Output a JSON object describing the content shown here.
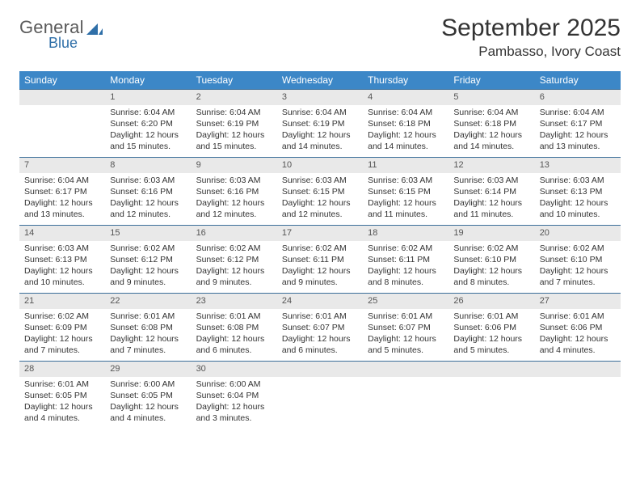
{
  "logo": {
    "text_general": "General",
    "text_blue": "Blue"
  },
  "colors": {
    "header_bg": "#3c87c7",
    "header_text": "#ffffff",
    "daynum_bg": "#e9e9e9",
    "daynum_border": "#3c6f9a",
    "logo_gray": "#5a5a5a",
    "logo_blue": "#2f6fa8"
  },
  "title": "September 2025",
  "location": "Pambasso, Ivory Coast",
  "weekdays": [
    "Sunday",
    "Monday",
    "Tuesday",
    "Wednesday",
    "Thursday",
    "Friday",
    "Saturday"
  ],
  "weeks": [
    [
      {
        "n": "",
        "sr": "",
        "ss": "",
        "dl": ""
      },
      {
        "n": "1",
        "sr": "Sunrise: 6:04 AM",
        "ss": "Sunset: 6:20 PM",
        "dl": "Daylight: 12 hours and 15 minutes."
      },
      {
        "n": "2",
        "sr": "Sunrise: 6:04 AM",
        "ss": "Sunset: 6:19 PM",
        "dl": "Daylight: 12 hours and 15 minutes."
      },
      {
        "n": "3",
        "sr": "Sunrise: 6:04 AM",
        "ss": "Sunset: 6:19 PM",
        "dl": "Daylight: 12 hours and 14 minutes."
      },
      {
        "n": "4",
        "sr": "Sunrise: 6:04 AM",
        "ss": "Sunset: 6:18 PM",
        "dl": "Daylight: 12 hours and 14 minutes."
      },
      {
        "n": "5",
        "sr": "Sunrise: 6:04 AM",
        "ss": "Sunset: 6:18 PM",
        "dl": "Daylight: 12 hours and 14 minutes."
      },
      {
        "n": "6",
        "sr": "Sunrise: 6:04 AM",
        "ss": "Sunset: 6:17 PM",
        "dl": "Daylight: 12 hours and 13 minutes."
      }
    ],
    [
      {
        "n": "7",
        "sr": "Sunrise: 6:04 AM",
        "ss": "Sunset: 6:17 PM",
        "dl": "Daylight: 12 hours and 13 minutes."
      },
      {
        "n": "8",
        "sr": "Sunrise: 6:03 AM",
        "ss": "Sunset: 6:16 PM",
        "dl": "Daylight: 12 hours and 12 minutes."
      },
      {
        "n": "9",
        "sr": "Sunrise: 6:03 AM",
        "ss": "Sunset: 6:16 PM",
        "dl": "Daylight: 12 hours and 12 minutes."
      },
      {
        "n": "10",
        "sr": "Sunrise: 6:03 AM",
        "ss": "Sunset: 6:15 PM",
        "dl": "Daylight: 12 hours and 12 minutes."
      },
      {
        "n": "11",
        "sr": "Sunrise: 6:03 AM",
        "ss": "Sunset: 6:15 PM",
        "dl": "Daylight: 12 hours and 11 minutes."
      },
      {
        "n": "12",
        "sr": "Sunrise: 6:03 AM",
        "ss": "Sunset: 6:14 PM",
        "dl": "Daylight: 12 hours and 11 minutes."
      },
      {
        "n": "13",
        "sr": "Sunrise: 6:03 AM",
        "ss": "Sunset: 6:13 PM",
        "dl": "Daylight: 12 hours and 10 minutes."
      }
    ],
    [
      {
        "n": "14",
        "sr": "Sunrise: 6:03 AM",
        "ss": "Sunset: 6:13 PM",
        "dl": "Daylight: 12 hours and 10 minutes."
      },
      {
        "n": "15",
        "sr": "Sunrise: 6:02 AM",
        "ss": "Sunset: 6:12 PM",
        "dl": "Daylight: 12 hours and 9 minutes."
      },
      {
        "n": "16",
        "sr": "Sunrise: 6:02 AM",
        "ss": "Sunset: 6:12 PM",
        "dl": "Daylight: 12 hours and 9 minutes."
      },
      {
        "n": "17",
        "sr": "Sunrise: 6:02 AM",
        "ss": "Sunset: 6:11 PM",
        "dl": "Daylight: 12 hours and 9 minutes."
      },
      {
        "n": "18",
        "sr": "Sunrise: 6:02 AM",
        "ss": "Sunset: 6:11 PM",
        "dl": "Daylight: 12 hours and 8 minutes."
      },
      {
        "n": "19",
        "sr": "Sunrise: 6:02 AM",
        "ss": "Sunset: 6:10 PM",
        "dl": "Daylight: 12 hours and 8 minutes."
      },
      {
        "n": "20",
        "sr": "Sunrise: 6:02 AM",
        "ss": "Sunset: 6:10 PM",
        "dl": "Daylight: 12 hours and 7 minutes."
      }
    ],
    [
      {
        "n": "21",
        "sr": "Sunrise: 6:02 AM",
        "ss": "Sunset: 6:09 PM",
        "dl": "Daylight: 12 hours and 7 minutes."
      },
      {
        "n": "22",
        "sr": "Sunrise: 6:01 AM",
        "ss": "Sunset: 6:08 PM",
        "dl": "Daylight: 12 hours and 7 minutes."
      },
      {
        "n": "23",
        "sr": "Sunrise: 6:01 AM",
        "ss": "Sunset: 6:08 PM",
        "dl": "Daylight: 12 hours and 6 minutes."
      },
      {
        "n": "24",
        "sr": "Sunrise: 6:01 AM",
        "ss": "Sunset: 6:07 PM",
        "dl": "Daylight: 12 hours and 6 minutes."
      },
      {
        "n": "25",
        "sr": "Sunrise: 6:01 AM",
        "ss": "Sunset: 6:07 PM",
        "dl": "Daylight: 12 hours and 5 minutes."
      },
      {
        "n": "26",
        "sr": "Sunrise: 6:01 AM",
        "ss": "Sunset: 6:06 PM",
        "dl": "Daylight: 12 hours and 5 minutes."
      },
      {
        "n": "27",
        "sr": "Sunrise: 6:01 AM",
        "ss": "Sunset: 6:06 PM",
        "dl": "Daylight: 12 hours and 4 minutes."
      }
    ],
    [
      {
        "n": "28",
        "sr": "Sunrise: 6:01 AM",
        "ss": "Sunset: 6:05 PM",
        "dl": "Daylight: 12 hours and 4 minutes."
      },
      {
        "n": "29",
        "sr": "Sunrise: 6:00 AM",
        "ss": "Sunset: 6:05 PM",
        "dl": "Daylight: 12 hours and 4 minutes."
      },
      {
        "n": "30",
        "sr": "Sunrise: 6:00 AM",
        "ss": "Sunset: 6:04 PM",
        "dl": "Daylight: 12 hours and 3 minutes."
      },
      {
        "n": "",
        "sr": "",
        "ss": "",
        "dl": ""
      },
      {
        "n": "",
        "sr": "",
        "ss": "",
        "dl": ""
      },
      {
        "n": "",
        "sr": "",
        "ss": "",
        "dl": ""
      },
      {
        "n": "",
        "sr": "",
        "ss": "",
        "dl": ""
      }
    ]
  ]
}
